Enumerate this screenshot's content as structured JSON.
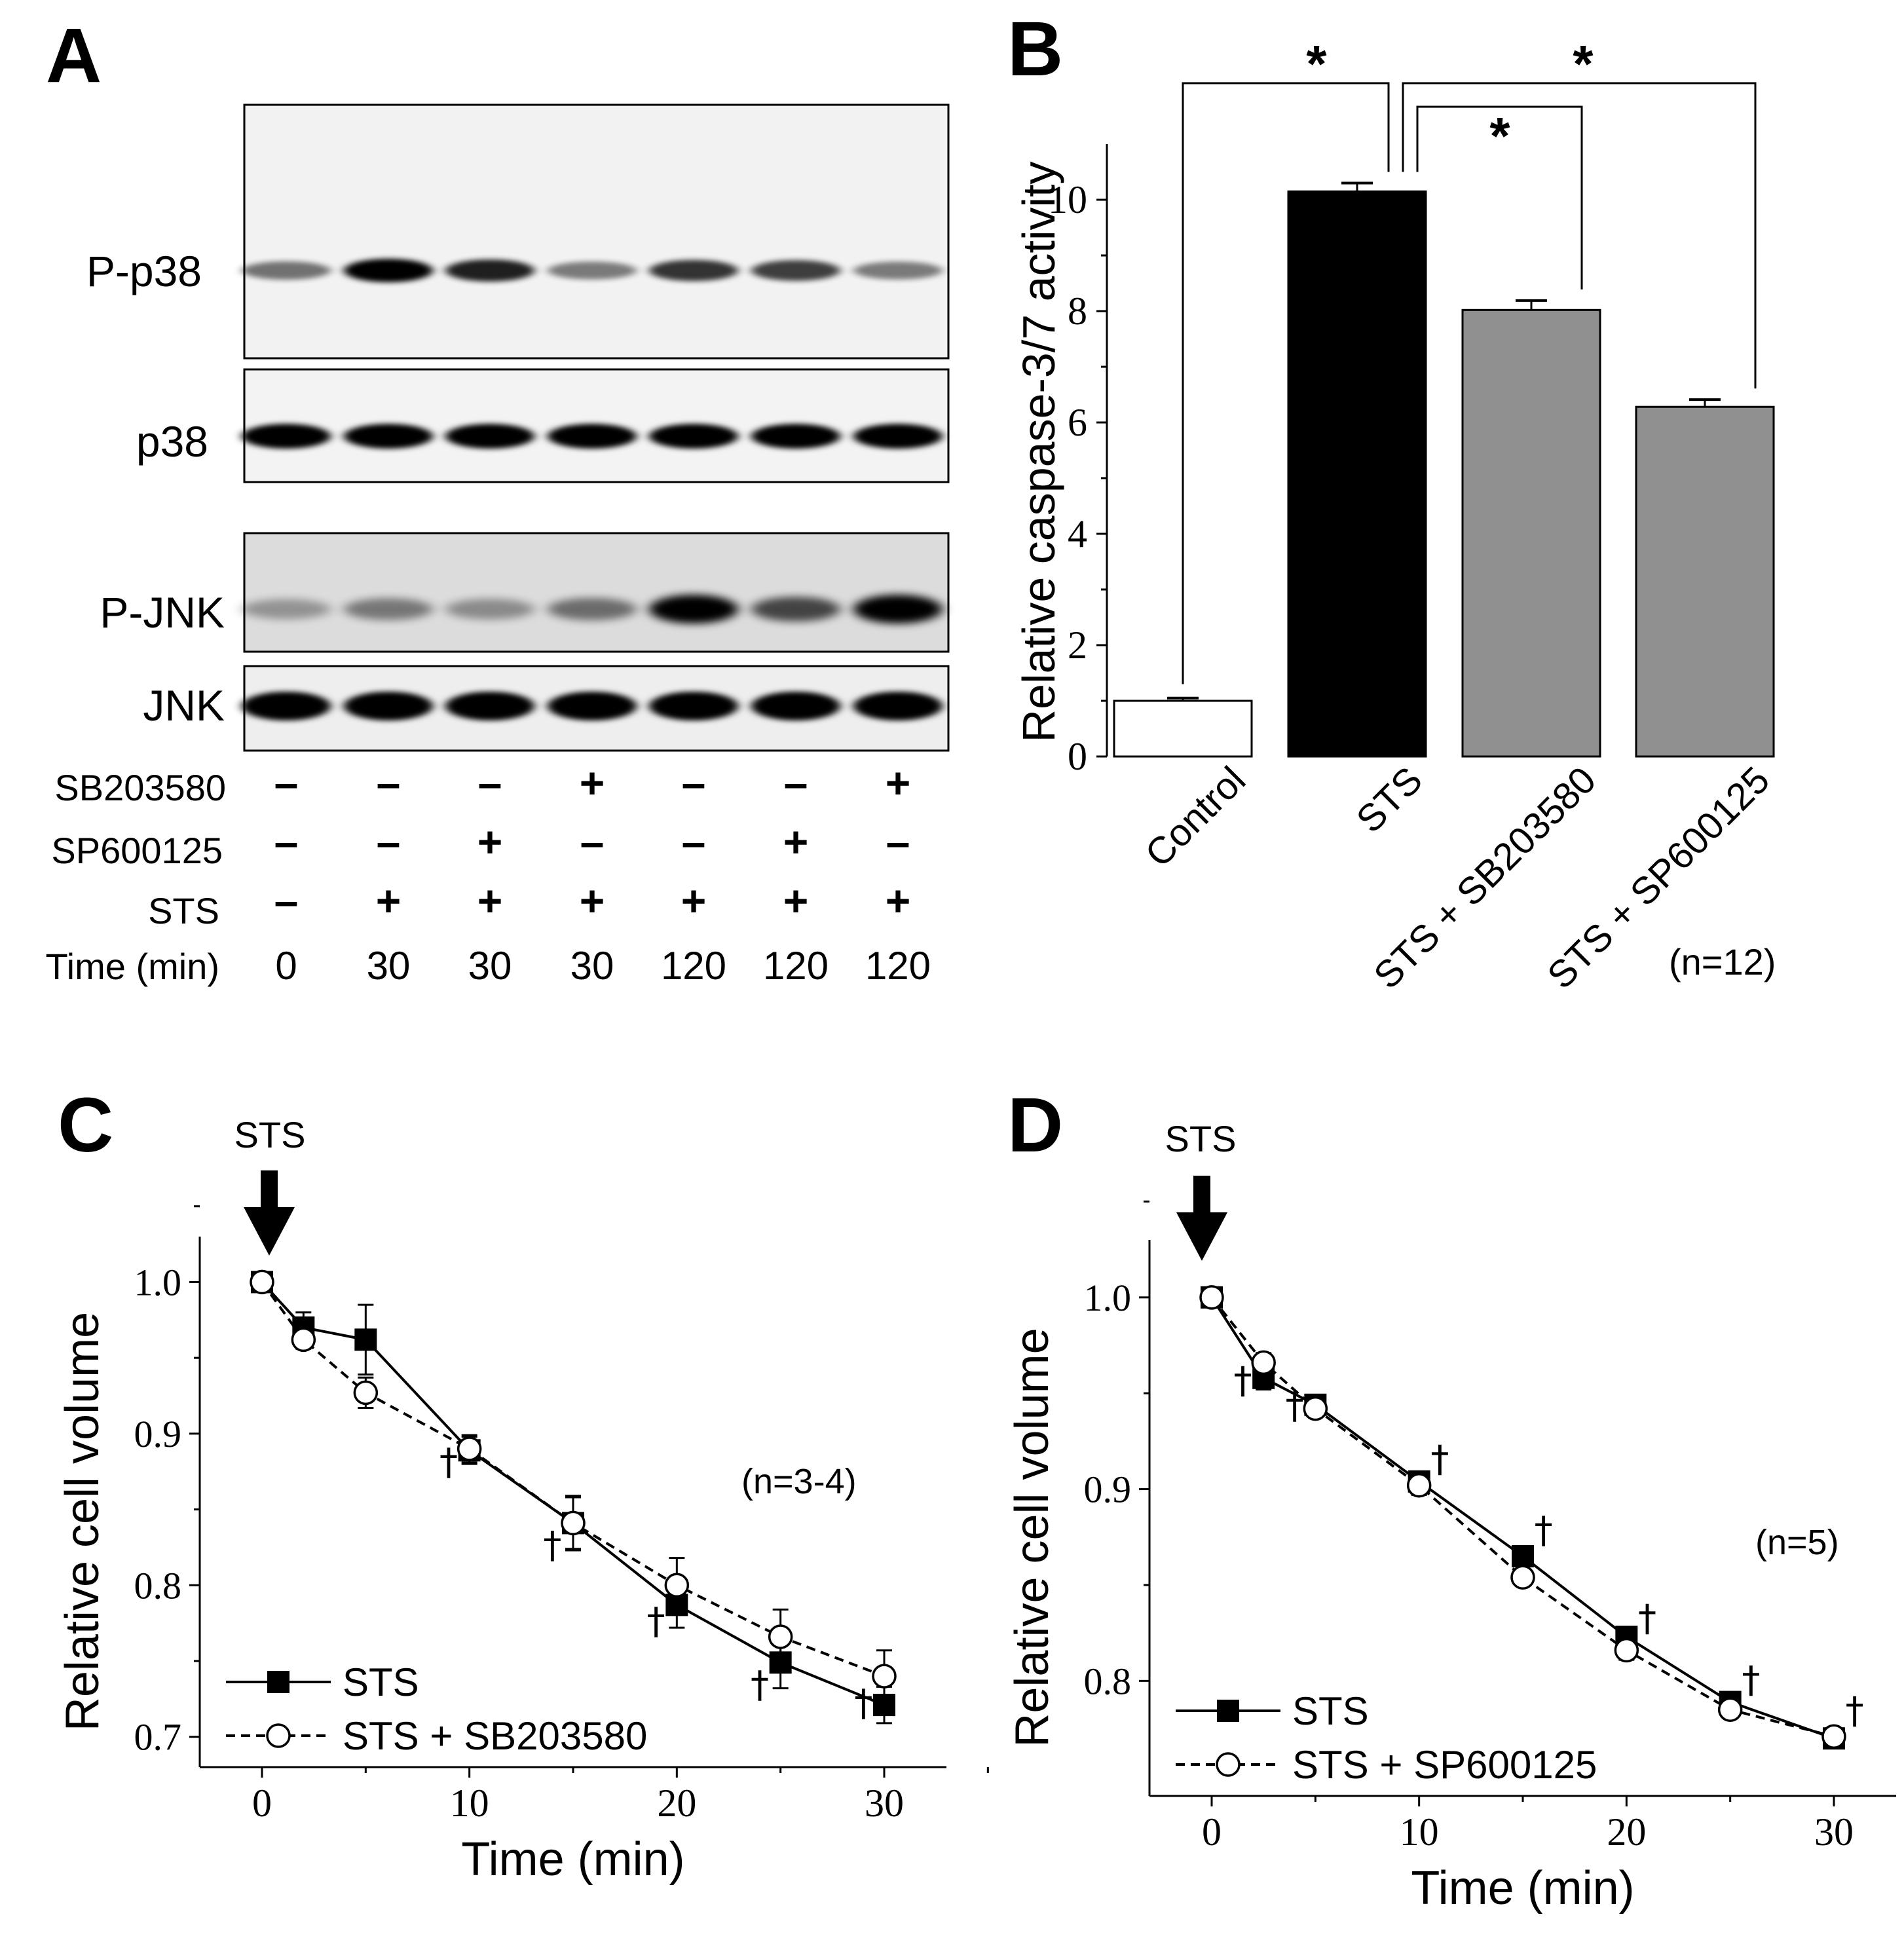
{
  "panelA": {
    "label": "A",
    "blot_labels": [
      "P-p38",
      "p38",
      "P-JNK",
      "JNK"
    ],
    "p_p38_intensity": [
      0.45,
      1.0,
      0.85,
      0.4,
      0.75,
      0.7,
      0.4
    ],
    "p38_intensity": [
      1,
      1,
      1,
      1,
      1,
      1,
      1
    ],
    "p_jnk_intensity": [
      0.25,
      0.4,
      0.3,
      0.45,
      1.0,
      0.65,
      1.0
    ],
    "jnk_intensity": [
      1,
      1,
      1,
      1,
      1,
      1,
      1
    ],
    "conditions": [
      {
        "label": "SB203580",
        "values": [
          "-",
          "-",
          "-",
          "+",
          "-",
          "-",
          "+"
        ]
      },
      {
        "label": "SP600125",
        "values": [
          "-",
          "-",
          "+",
          "-",
          "-",
          "+",
          "-"
        ]
      },
      {
        "label": "STS",
        "values": [
          "-",
          "+",
          "+",
          "+",
          "+",
          "+",
          "+"
        ]
      },
      {
        "label": "Time (min)",
        "values": [
          "0",
          "30",
          "30",
          "30",
          "120",
          "120",
          "120"
        ]
      }
    ]
  },
  "panelB": {
    "label": "B",
    "n_label": "(n=12)",
    "significance": [
      "*",
      "*",
      "*"
    ]
  },
  "panelC": {
    "label": "C",
    "arrow_label": "STS",
    "n_label": "(n=3-4)",
    "dagger": "†"
  },
  "panelD": {
    "label": "D",
    "arrow_label": "STS",
    "n_label": "(n=5)",
    "dagger": "†"
  },
  "chart_data": [
    {
      "id": "B",
      "type": "bar",
      "categories": [
        "Control",
        "STS",
        "STS + SB203580",
        "STS + SP600125"
      ],
      "values": [
        1.0,
        10.15,
        8.02,
        6.28
      ],
      "errors": [
        0.05,
        0.15,
        0.17,
        0.13
      ],
      "colors": [
        "#ffffff",
        "#000000",
        "#909090",
        "#909090"
      ],
      "ylabel": "Relative caspase-3/7 activity",
      "ylim": [
        0,
        11
      ],
      "yticks": [
        "0",
        "2",
        "4",
        "6",
        "8",
        "10"
      ]
    },
    {
      "id": "C",
      "type": "line",
      "xlabel": "Time (min)",
      "ylabel": "Relative cell volume",
      "xlim": [
        -3,
        33
      ],
      "ylim": [
        0.68,
        1.03
      ],
      "xticks": [
        "0",
        "10",
        "20",
        "30"
      ],
      "yticks": [
        "0.7",
        "0.8",
        "0.9",
        "1.0"
      ],
      "series": [
        {
          "name": "STS",
          "marker": "square",
          "dash": "solid",
          "x": [
            0,
            2,
            5,
            10,
            15,
            20,
            25,
            30
          ],
          "y": [
            1.0,
            0.97,
            0.962,
            0.889,
            0.841,
            0.787,
            0.749,
            0.721
          ],
          "err": [
            0.004,
            0.01,
            0.023,
            0.009,
            0.018,
            0.015,
            0.017,
            0.012
          ]
        },
        {
          "name": "STS + SB203580",
          "marker": "circle",
          "dash": "dashed",
          "x": [
            0,
            2,
            5,
            10,
            15,
            20,
            25,
            30
          ],
          "y": [
            1.0,
            0.962,
            0.927,
            0.89,
            0.841,
            0.8,
            0.766,
            0.74
          ],
          "err": [
            0.004,
            0.006,
            0.01,
            0.009,
            0.017,
            0.018,
            0.018,
            0.017
          ]
        }
      ],
      "dagger_x": [
        9,
        14,
        19,
        24,
        29
      ],
      "dagger_y": [
        0.873,
        0.818,
        0.768,
        0.726,
        0.714
      ]
    },
    {
      "id": "D",
      "type": "line",
      "xlabel": "Time (min)",
      "ylabel": "Relative cell volume",
      "xlim": [
        -3,
        33
      ],
      "ylim": [
        0.74,
        1.03
      ],
      "xticks": [
        "0",
        "10",
        "20",
        "30"
      ],
      "yticks": [
        "0.8",
        "0.9",
        "1.0"
      ],
      "series": [
        {
          "name": "STS",
          "marker": "square",
          "dash": "solid",
          "x": [
            0,
            2.5,
            5,
            10,
            15,
            20,
            25,
            30
          ],
          "y": [
            1.0,
            0.958,
            0.944,
            0.904,
            0.865,
            0.823,
            0.789,
            0.77
          ],
          "err": [
            0.003,
            0.006,
            0.005,
            0.005,
            0.005,
            0.004,
            0.003,
            0.004
          ]
        },
        {
          "name": "STS + SP600125",
          "marker": "circle",
          "dash": "dashed",
          "x": [
            0,
            2.5,
            5,
            10,
            15,
            20,
            25,
            30
          ],
          "y": [
            1.0,
            0.966,
            0.942,
            0.902,
            0.854,
            0.816,
            0.785,
            0.771
          ],
          "err": [
            0.003,
            0.005,
            0.004,
            0.005,
            0.004,
            0.005,
            0.004,
            0.003
          ]
        }
      ],
      "dagger_x": [
        1.5,
        4,
        11,
        16,
        21,
        26,
        31
      ],
      "dagger_y": [
        0.95,
        0.937,
        0.909,
        0.872,
        0.826,
        0.794,
        0.778
      ]
    }
  ]
}
